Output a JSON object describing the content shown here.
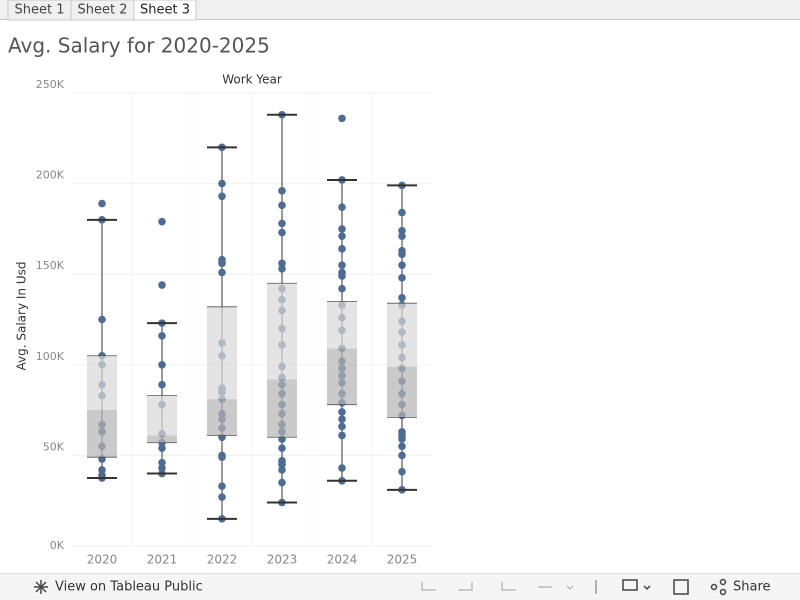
{
  "tabs": [
    "Sheet 1",
    "Sheet 2",
    "Sheet 3"
  ],
  "active_tab": 2,
  "toolbar": {
    "left": "View on Tableau Public",
    "right": "Share"
  },
  "chart_data": {
    "type": "box",
    "title": "Avg. Salary for 2020-2025",
    "x_label": "Work Year",
    "y_label": "Avg. Salary In Usd",
    "categories": [
      "2020",
      "2021",
      "2022",
      "2023",
      "2024",
      "2025"
    ],
    "point_color": "#4e6b91",
    "box_upper_color": "#d9d9d9",
    "box_lower_color": "#b3b3b3",
    "whisker_color": "#333333",
    "grid": true,
    "ylim": [
      0,
      250000
    ],
    "yticks": [
      {
        "value": 0,
        "label": "0K"
      },
      {
        "value": 50000,
        "label": "50K"
      },
      {
        "value": 100000,
        "label": "100K"
      },
      {
        "value": 150000,
        "label": "150K"
      },
      {
        "value": 200000,
        "label": "200K"
      },
      {
        "value": 250000,
        "label": "250K"
      }
    ],
    "boxes": [
      {
        "low": 37500,
        "q1": 49000,
        "median": 75000,
        "q3": 105000,
        "high": 180000
      },
      {
        "low": 40000,
        "q1": 57000,
        "median": 61000,
        "q3": 83000,
        "high": 123000
      },
      {
        "low": 15000,
        "q1": 61000,
        "median": 81000,
        "q3": 132000,
        "high": 220000
      },
      {
        "low": 24000,
        "q1": 60000,
        "median": 92000,
        "q3": 145000,
        "high": 238000
      },
      {
        "low": 36000,
        "q1": 78000,
        "median": 109000,
        "q3": 135000,
        "high": 202000
      },
      {
        "low": 31000,
        "q1": 71000,
        "median": 99000,
        "q3": 134000,
        "high": 199000
      }
    ],
    "points": [
      [
        189000,
        180000,
        125000,
        105000,
        100000,
        89000,
        83000,
        67000,
        63000,
        55000,
        48000,
        42000,
        39000,
        37500
      ],
      [
        179000,
        144000,
        123000,
        116000,
        100000,
        89000,
        78000,
        62000,
        57000,
        54000,
        46000,
        43000,
        40000
      ],
      [
        220000,
        200000,
        193000,
        158000,
        156000,
        151000,
        112000,
        105000,
        87000,
        85000,
        81000,
        73000,
        70000,
        65000,
        60000,
        50000,
        49000,
        33000,
        27000,
        15000
      ],
      [
        238000,
        196000,
        188000,
        178000,
        173000,
        156000,
        153000,
        142000,
        136000,
        130000,
        120000,
        111000,
        99000,
        93000,
        89000,
        84000,
        78000,
        73000,
        67000,
        63000,
        59000,
        54000,
        47000,
        45000,
        42000,
        35000,
        24000
      ],
      [
        236000,
        202000,
        187000,
        175000,
        171000,
        164000,
        155000,
        151000,
        149000,
        142000,
        133000,
        126000,
        119000,
        109000,
        102000,
        98000,
        94000,
        90000,
        84000,
        79000,
        74000,
        70000,
        66000,
        61000,
        43000,
        36000
      ],
      [
        199000,
        184000,
        174000,
        171000,
        163000,
        161000,
        155000,
        148000,
        137000,
        133000,
        124000,
        118000,
        111000,
        104000,
        98000,
        91000,
        84000,
        78000,
        72000,
        63000,
        61000,
        59000,
        55000,
        50000,
        41000,
        31000
      ]
    ]
  }
}
